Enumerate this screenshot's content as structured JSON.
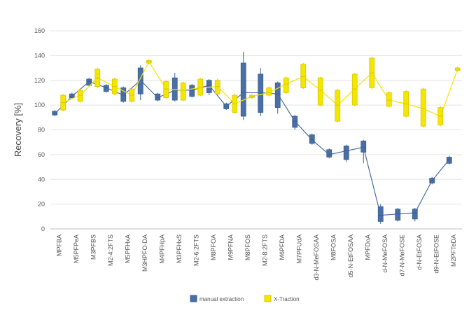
{
  "chart_data": {
    "type": "box",
    "title": "",
    "xlabel": "",
    "ylabel": "Recovery [%]",
    "ylim": [
      0,
      160
    ],
    "yticks": [
      0,
      20,
      40,
      60,
      80,
      100,
      120,
      140,
      160
    ],
    "grid": true,
    "legend_position": "bottom",
    "categories": [
      "MPFBA",
      "M5PFPeA",
      "M3PFBS",
      "M2-4:2FTS",
      "M5PFHxA",
      "M3HPFO-DA",
      "M4PFHpA",
      "M3PFHxS",
      "M2-6:2FTS",
      "M8PFOA",
      "M9PFNA",
      "M8PFOS",
      "M2-8:2FTS",
      "M6PFDA",
      "M7PFUdA",
      "d3-N-MeFOSAA",
      "M8FOSA",
      "d5-N-EtFOSAA",
      "MPFDoA",
      "d-N-MeFOSA",
      "d7-N-MeFOSE",
      "d-N-EtFOSA",
      "d9-N-EtFOSE",
      "M2PFTeDA"
    ],
    "series": [
      {
        "name": "manual extraction",
        "color": "#4a6fa5",
        "mean": [
          93,
          107,
          119,
          114,
          108,
          120,
          106,
          112,
          112,
          116,
          99,
          110,
          110,
          109,
          87,
          72,
          60,
          63,
          66,
          11,
          12,
          13,
          39,
          56
        ],
        "q1": [
          92,
          106,
          116,
          111,
          103,
          109,
          104,
          104,
          107,
          110,
          97,
          91,
          94,
          98,
          82,
          69,
          58,
          56,
          62,
          6,
          7,
          8,
          37,
          53
        ],
        "q3": [
          95,
          109,
          121,
          116,
          114,
          130,
          109,
          122,
          116,
          120,
          101,
          134,
          125,
          118,
          91,
          76,
          64,
          67,
          71,
          18,
          16,
          16,
          41,
          58
        ],
        "min": [
          91,
          105,
          115,
          110,
          102,
          104,
          103,
          103,
          106,
          108,
          96,
          88,
          91,
          93,
          80,
          68,
          57,
          54,
          53,
          4,
          6,
          6,
          36,
          52
        ],
        "max": [
          96,
          110,
          122,
          117,
          115,
          132,
          110,
          126,
          117,
          121,
          102,
          143,
          130,
          119,
          92,
          77,
          65,
          68,
          72,
          20,
          17,
          17,
          42,
          59
        ]
      },
      {
        "name": "X-Traction",
        "color": "#f5e600",
        "mean": [
          102,
          108,
          122,
          115,
          108,
          135,
          113,
          112,
          114,
          115,
          101,
          107,
          110,
          117,
          123,
          112,
          100,
          113,
          126,
          104,
          101,
          97,
          91,
          129
        ],
        "q1": [
          96,
          103,
          115,
          109,
          103,
          134,
          106,
          104,
          108,
          109,
          94,
          106,
          108,
          110,
          114,
          100,
          87,
          100,
          114,
          99,
          91,
          83,
          84,
          128
        ],
        "q3": [
          108,
          112,
          129,
          121,
          113,
          136,
          119,
          118,
          121,
          120,
          108,
          108,
          114,
          122,
          133,
          122,
          112,
          125,
          138,
          110,
          111,
          113,
          98,
          130
        ],
        "min": [
          95,
          102,
          114,
          108,
          102,
          133,
          105,
          103,
          107,
          108,
          93,
          105,
          107,
          109,
          113,
          99,
          86,
          99,
          113,
          98,
          90,
          82,
          83,
          127
        ],
        "max": [
          109,
          113,
          130,
          122,
          114,
          137,
          120,
          119,
          122,
          121,
          109,
          109,
          115,
          123,
          134,
          123,
          113,
          126,
          139,
          111,
          112,
          114,
          99,
          131
        ]
      }
    ]
  },
  "colors": {
    "grid": "#e4e4e4",
    "axis": "#bfbfbf",
    "box_stroke_manual": "#3a5f92",
    "box_stroke_xtraction": "#d8c800"
  }
}
